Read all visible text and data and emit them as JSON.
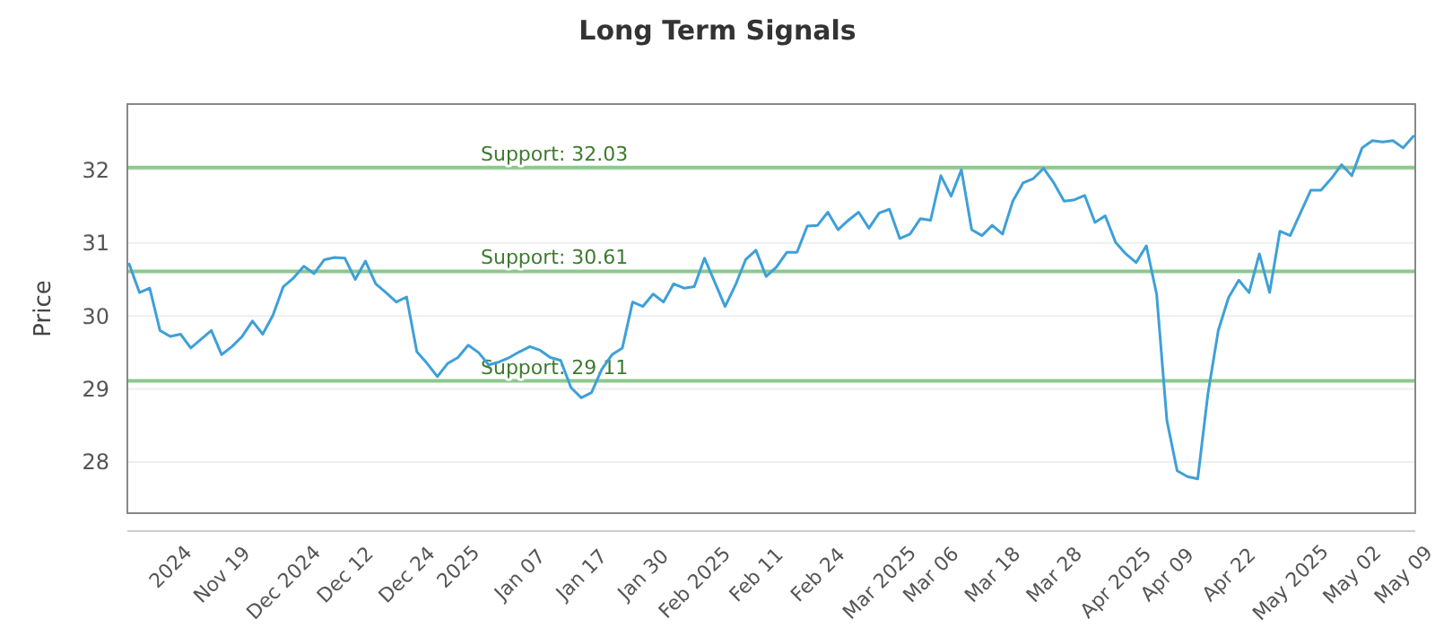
{
  "chart_data": {
    "type": "line",
    "title": "Long Term Signals",
    "ylabel": "Price",
    "categories": [
      null,
      null,
      null,
      null,
      "2024",
      null,
      null,
      null,
      null,
      "Nov 19",
      null,
      null,
      null,
      null,
      null,
      "Dec 2024",
      null,
      null,
      null,
      null,
      null,
      "Dec 12",
      null,
      null,
      null,
      null,
      null,
      "Dec 24",
      null,
      null,
      null,
      null,
      "2025",
      null,
      null,
      null,
      null,
      null,
      "Jan 07",
      null,
      null,
      null,
      null,
      null,
      "Jan 17",
      null,
      null,
      null,
      null,
      null,
      "Jan 30",
      null,
      null,
      null,
      null,
      "Feb 2025",
      null,
      null,
      null,
      null,
      null,
      "Feb 11",
      null,
      null,
      null,
      null,
      null,
      "Feb 24",
      null,
      null,
      null,
      null,
      null,
      "Mar 2025",
      null,
      null,
      null,
      null,
      "Mar 06",
      null,
      null,
      null,
      null,
      null,
      "Mar 18",
      null,
      null,
      null,
      null,
      null,
      "Mar 28",
      null,
      null,
      null,
      null,
      null,
      "Apr 2025",
      null,
      null,
      null,
      null,
      "Apr 09",
      null,
      null,
      null,
      null,
      null,
      "Apr 22",
      null,
      null,
      null,
      null,
      null,
      "May 2025",
      null,
      null,
      null,
      null,
      null,
      "May 02",
      null,
      null,
      null,
      null,
      "May 09",
      null
    ],
    "series": [
      {
        "color": "#3ea0d8",
        "values": [
          30.71,
          30.32,
          30.38,
          29.8,
          29.72,
          29.75,
          29.56,
          29.68,
          29.8,
          29.47,
          29.58,
          29.72,
          29.93,
          29.75,
          30.01,
          30.4,
          30.52,
          30.68,
          30.58,
          30.77,
          30.8,
          30.79,
          30.5,
          30.75,
          30.44,
          30.32,
          30.19,
          30.26,
          29.51,
          29.35,
          29.17,
          29.35,
          29.43,
          29.6,
          29.5,
          29.33,
          29.37,
          29.43,
          29.51,
          29.58,
          29.53,
          29.43,
          29.39,
          29.02,
          28.88,
          28.95,
          29.27,
          29.47,
          29.56,
          30.19,
          30.13,
          30.3,
          30.19,
          30.44,
          30.38,
          30.4,
          30.79,
          30.46,
          30.13,
          30.42,
          30.77,
          30.9,
          30.54,
          30.67,
          30.87,
          30.87,
          31.23,
          31.24,
          31.42,
          31.18,
          31.31,
          31.42,
          31.2,
          31.41,
          31.46,
          31.06,
          31.12,
          31.33,
          31.31,
          31.92,
          31.64,
          32.0,
          31.18,
          31.1,
          31.24,
          31.12,
          31.57,
          31.82,
          31.88,
          32.02,
          31.82,
          31.57,
          31.59,
          31.65,
          31.28,
          31.37,
          31.01,
          30.85,
          30.73,
          30.96,
          30.3,
          28.57,
          27.88,
          27.8,
          27.77,
          28.94,
          29.8,
          30.25,
          30.49,
          30.32,
          30.85,
          30.32,
          31.16,
          31.1,
          31.41,
          31.72,
          31.72,
          31.88,
          32.07,
          31.92,
          32.3,
          32.4,
          32.38,
          32.4,
          32.3,
          32.46
        ]
      }
    ],
    "ylim": [
      27.3,
      32.9
    ],
    "yticks": [
      28,
      29,
      30,
      31,
      32
    ],
    "grid": "y",
    "marker": "none",
    "line_style": "solid",
    "ref_lines": [
      {
        "axis": "y",
        "value": 32.03,
        "label": "Support: 32.03",
        "color": "#8cc98c"
      },
      {
        "axis": "y",
        "value": 30.61,
        "label": "Support: 30.61",
        "color": "#8cc98c"
      },
      {
        "axis": "y",
        "value": 29.11,
        "label": "Support: 29.11",
        "color": "#8cc98c"
      }
    ]
  }
}
